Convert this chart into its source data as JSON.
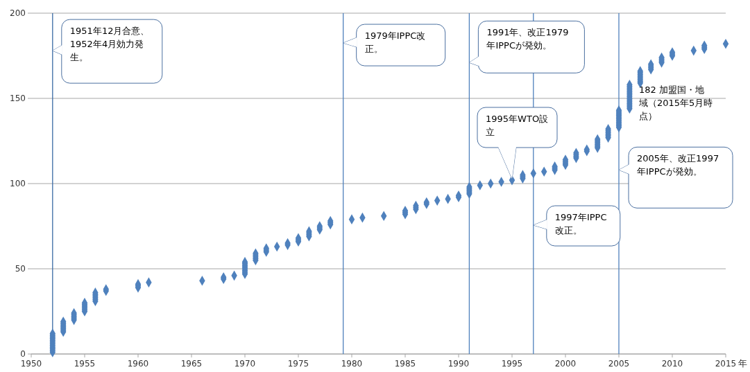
{
  "chart_data": {
    "type": "scatter",
    "xlabel": "年",
    "xlim": [
      1950,
      2015
    ],
    "xticks": [
      1950,
      1955,
      1960,
      1965,
      1970,
      1975,
      1980,
      1985,
      1990,
      1995,
      2000,
      2005,
      2010,
      2015
    ],
    "ylim": [
      0,
      200
    ],
    "yticks": [
      0,
      50,
      100,
      150,
      200
    ],
    "grid": "y",
    "marker": "diamond",
    "series": [
      {
        "color": "#4f81bd",
        "x": [
          1952,
          1952,
          1952,
          1952,
          1952,
          1952,
          1952,
          1952,
          1952,
          1952,
          1952,
          1952,
          1953,
          1953,
          1953,
          1953,
          1953,
          1953,
          1953,
          1954,
          1954,
          1954,
          1954,
          1954,
          1955,
          1955,
          1955,
          1955,
          1955,
          1955,
          1956,
          1956,
          1956,
          1956,
          1956,
          1956,
          1957,
          1957,
          1960,
          1960,
          1960,
          1961,
          1966,
          1968,
          1968,
          1969,
          1970,
          1970,
          1970,
          1970,
          1970,
          1970,
          1970,
          1970,
          1971,
          1971,
          1971,
          1971,
          1971,
          1972,
          1972,
          1972,
          1973,
          1974,
          1974,
          1975,
          1975,
          1975,
          1976,
          1976,
          1976,
          1976,
          1977,
          1977,
          1977,
          1978,
          1978,
          1978,
          1980,
          1981,
          1983,
          1985,
          1985,
          1985,
          1986,
          1986,
          1986,
          1987,
          1987,
          1988,
          1989,
          1990,
          1990,
          1991,
          1991,
          1991,
          1991,
          1991,
          1992,
          1993,
          1994,
          1995,
          1996,
          1996,
          1996,
          1997,
          1998,
          1999,
          1999,
          1999,
          2000,
          2000,
          2000,
          2000,
          2001,
          2001,
          2001,
          2001,
          2002,
          2002,
          2003,
          2003,
          2003,
          2003,
          2003,
          2003,
          2004,
          2004,
          2004,
          2004,
          2004,
          2004,
          2005,
          2005,
          2005,
          2005,
          2005,
          2005,
          2005,
          2005,
          2005,
          2005,
          2005,
          2006,
          2006,
          2006,
          2006,
          2006,
          2006,
          2006,
          2006,
          2006,
          2006,
          2006,
          2006,
          2006,
          2006,
          2006,
          2007,
          2007,
          2007,
          2007,
          2007,
          2007,
          2007,
          2007,
          2008,
          2008,
          2008,
          2008,
          2009,
          2009,
          2009,
          2009,
          2010,
          2010,
          2010,
          2012,
          2013,
          2013,
          2013,
          2015
        ],
        "values": [
          1,
          2,
          3,
          4,
          5,
          6,
          7,
          8,
          9,
          10,
          11,
          12,
          13,
          14,
          15,
          16,
          17,
          18,
          19,
          20,
          21,
          22,
          23,
          24,
          25,
          26,
          27,
          28,
          29,
          30,
          31,
          32,
          33,
          34,
          35,
          36,
          37,
          38,
          39,
          40,
          41,
          42,
          43,
          44,
          45,
          46,
          47,
          48,
          49,
          50,
          51,
          52,
          53,
          54,
          55,
          56,
          57,
          58,
          59,
          60,
          61,
          62,
          63,
          64,
          65,
          66,
          67,
          68,
          69,
          70,
          71,
          72,
          73,
          74,
          75,
          76,
          77,
          78,
          79,
          80,
          81,
          82,
          83,
          84,
          85,
          86,
          87,
          88,
          89,
          90,
          91,
          92,
          93,
          94,
          95,
          96,
          97,
          98,
          99,
          100,
          101,
          102,
          103,
          104,
          105,
          106,
          107,
          108,
          109,
          110,
          111,
          112,
          113,
          114,
          115,
          116,
          117,
          118,
          119,
          120,
          121,
          122,
          123,
          124,
          125,
          126,
          127,
          128,
          129,
          130,
          131,
          132,
          133,
          134,
          135,
          136,
          137,
          138,
          139,
          140,
          141,
          142,
          143,
          144,
          145,
          146,
          147,
          148,
          149,
          150,
          151,
          152,
          153,
          154,
          155,
          156,
          157,
          158,
          159,
          160,
          161,
          162,
          163,
          164,
          165,
          166,
          167,
          168,
          169,
          170,
          171,
          172,
          173,
          174,
          175,
          176,
          177,
          178,
          179,
          180,
          181,
          182
        ]
      }
    ],
    "ref_lines": [
      {
        "axis": "x",
        "value": 1952,
        "color": "#3a6aa5"
      },
      {
        "axis": "x",
        "value": 1979.2,
        "color": "#4f81bd"
      },
      {
        "axis": "x",
        "value": 1991,
        "color": "#4f81bd"
      },
      {
        "axis": "x",
        "value": 1997,
        "color": "#4f81bd"
      },
      {
        "axis": "x",
        "value": 2005,
        "color": "#4f81bd"
      }
    ],
    "annotations": [
      {
        "text": "1951年12月合意、1952年4月効力発生。",
        "x": 1952,
        "y": 178
      },
      {
        "text": "1979年IPPC改正。",
        "x": 1979.2,
        "y": 182.5
      },
      {
        "text": "1991年、改正1979年IPPCが発効。",
        "x": 1991,
        "y": 171
      },
      "1995年WTO設立",
      {
        "text": "1997年IPPC改正。",
        "x": 1997,
        "y": 75.6
      },
      {
        "text": "2005年、改正1997年IPPCが発効。",
        "x": 2005,
        "y": 108
      },
      "182 加盟国・地域（2015年5月時点）"
    ]
  }
}
